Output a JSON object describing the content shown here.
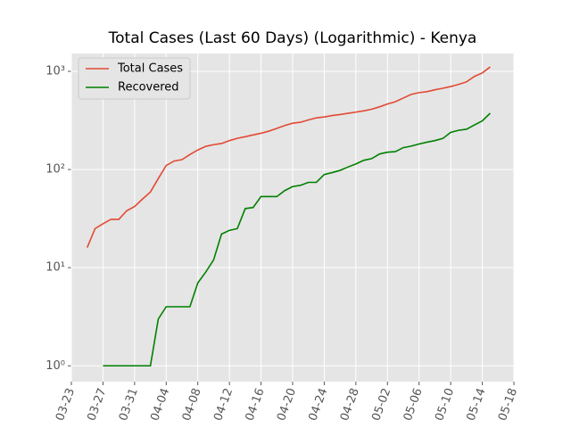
{
  "chart_data": {
    "type": "line",
    "title": "Total Cases (Last 60 Days) (Logarithmic) - Kenya",
    "x": [
      "03-25",
      "03-26",
      "03-27",
      "03-28",
      "03-29",
      "03-30",
      "03-31",
      "04-01",
      "04-02",
      "04-03",
      "04-04",
      "04-05",
      "04-06",
      "04-07",
      "04-08",
      "04-09",
      "04-10",
      "04-11",
      "04-12",
      "04-13",
      "04-14",
      "04-15",
      "04-16",
      "04-17",
      "04-18",
      "04-19",
      "04-20",
      "04-21",
      "04-22",
      "04-23",
      "04-24",
      "04-25",
      "04-26",
      "04-27",
      "04-28",
      "04-29",
      "04-30",
      "05-01",
      "05-02",
      "05-03",
      "05-04",
      "05-05",
      "05-06",
      "05-07",
      "05-08",
      "05-09",
      "05-10",
      "05-11",
      "05-12",
      "05-13",
      "05-14",
      "05-15"
    ],
    "series": [
      {
        "name": "Total Cases",
        "color": "#e24a33",
        "values": [
          16,
          25,
          28,
          31,
          31,
          38,
          42,
          50,
          59,
          81,
          110,
          122,
          126,
          142,
          158,
          172,
          179,
          184,
          197,
          208,
          216,
          225,
          234,
          246,
          262,
          281,
          296,
          303,
          320,
          336,
          343,
          355,
          363,
          374,
          384,
          396,
          411,
          435,
          465,
          490,
          535,
          582,
          607,
          621,
          649,
          672,
          700,
          737,
          781,
          887,
          963,
          1109
        ]
      },
      {
        "name": "Recovered",
        "color": "#008000",
        "values": [
          null,
          null,
          1,
          1,
          1,
          1,
          1,
          1,
          1,
          3,
          4,
          4,
          4,
          4,
          7,
          9,
          12,
          22,
          24,
          25,
          40,
          41,
          53,
          53,
          53,
          61,
          67,
          69,
          74,
          74,
          89,
          93,
          98,
          106,
          114,
          124,
          129,
          144,
          150,
          152,
          167,
          173,
          182,
          190,
          197,
          207,
          239,
          251,
          257,
          284,
          313,
          375
        ]
      }
    ],
    "xlim": [
      "03-23",
      "05-18"
    ],
    "xticks": [
      "03-23",
      "03-27",
      "03-31",
      "04-04",
      "04-08",
      "04-12",
      "04-16",
      "04-20",
      "04-24",
      "04-28",
      "05-02",
      "05-06",
      "05-10",
      "05-14",
      "05-18"
    ],
    "ylim": [
      0.69,
      1520
    ],
    "yticks": [
      {
        "value": 1,
        "label": "10⁰"
      },
      {
        "value": 10,
        "label": "10¹"
      },
      {
        "value": 100,
        "label": "10²"
      },
      {
        "value": 1000,
        "label": "10³"
      }
    ],
    "log_y": true,
    "grid": true,
    "legend": "upper left"
  }
}
